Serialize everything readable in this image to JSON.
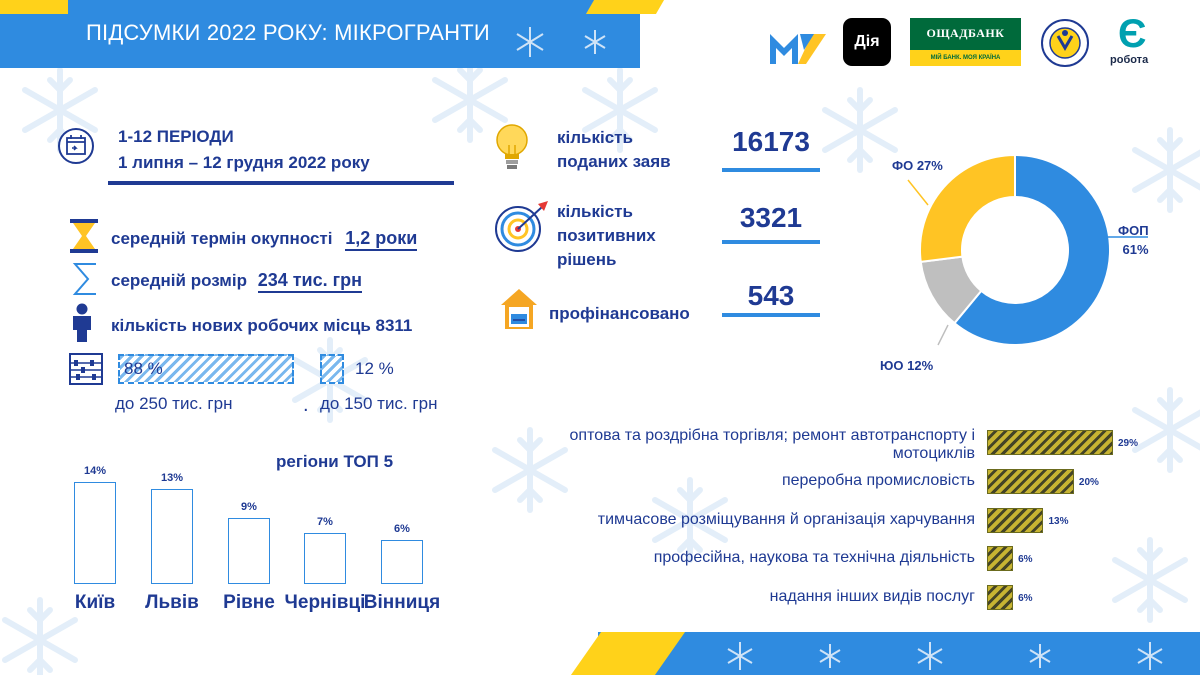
{
  "header": {
    "title": "ПІДСУМКИ 2022 РОКУ: МІКРОГРАНТИ"
  },
  "logos": {
    "diya": "Дія",
    "oschadbank": "ОЩАДБАНК",
    "oschadbank_slogan": "МІЙ БАНК. МОЯ КРАЇНА",
    "erobota_letter": "Є",
    "erobota_word": "робота"
  },
  "period": {
    "line1": "1-12 ПЕРІОДИ",
    "line2": "1 липня – 12 грудня 2022 року"
  },
  "stats": {
    "payback_label": "середній термін окупності",
    "payback_value": "1,2 роки",
    "size_label": "середній розмір",
    "size_value": "234 тис. грн",
    "jobs_label": "кількість нових робочих місць 8311"
  },
  "shares": {
    "big_pct": "88 %",
    "big_sub": "до 250 тис. грн",
    "big_value": 88,
    "small_pct": "12 %",
    "small_sub": "до 150 тис. грн",
    "small_value": 12,
    "separator": "."
  },
  "kpis": {
    "applications_label_1": "кількість",
    "applications_label_2": "поданих заяв",
    "applications_value": "16173",
    "positive_label_1": "кількість",
    "positive_label_2": "позитивних",
    "positive_label_3": "рішень",
    "positive_value": "3321",
    "funded_label": "профінансовано",
    "funded_value": "543"
  },
  "icon_names": [
    "calendar-icon",
    "hourglass-icon",
    "sigma-icon",
    "person-icon",
    "abacus-icon",
    "lightbulb-icon",
    "target-icon",
    "bank-card-icon"
  ],
  "colors": {
    "primary_blue": "#2f8be0",
    "navy_text": "#1f3a93",
    "yellow": "#ffd21a",
    "donut_fop": "#2f8be0",
    "donut_fo": "#ffc424",
    "donut_yuo": "#bfbfbf",
    "sector_fill": "#c7b432"
  },
  "chart_data": [
    {
      "type": "pie",
      "variant": "donut",
      "categories": [
        "ФОП",
        "ФО",
        "ЮО"
      ],
      "values": [
        61,
        27,
        12
      ],
      "labels": [
        "ФОП\n61%",
        "ФО 27%",
        "ЮО 12%"
      ],
      "label_fop_1": "ФОП",
      "label_fop_2": "61%",
      "label_fo": "ФО 27%",
      "label_yuo": "ЮО 12%"
    },
    {
      "type": "bar",
      "title": "регіони ТОП 5",
      "categories": [
        "Київ",
        "Львів",
        "Рівне",
        "Чернівці",
        "Вінниця"
      ],
      "values": [
        14,
        13,
        9,
        7,
        6
      ],
      "value_labels": [
        "14%",
        "13%",
        "9%",
        "7%",
        "6%"
      ]
    },
    {
      "type": "bar",
      "orientation": "horizontal",
      "categories": [
        "оптова та роздрібна торгівля; ремонт автотранспорту і мотоциклів",
        "переробна промисловість",
        "тимчасове розміщування й організація харчування",
        "професійна, наукова та технічна діяльність",
        "надання інших видів послуг"
      ],
      "category_lines": [
        [
          "оптова та роздрібна торгівля; ремонт автотранспорту і",
          "мотоциклів"
        ],
        [
          "переробна промисловість"
        ],
        [
          "тимчасове розміщування й організація харчування"
        ],
        [
          "професійна, наукова та технічна діяльність"
        ],
        [
          "надання інших видів послуг"
        ]
      ],
      "values": [
        29,
        20,
        13,
        6,
        6
      ],
      "value_labels": [
        "29%",
        "20%",
        "13%",
        "6%",
        "6%"
      ]
    }
  ]
}
